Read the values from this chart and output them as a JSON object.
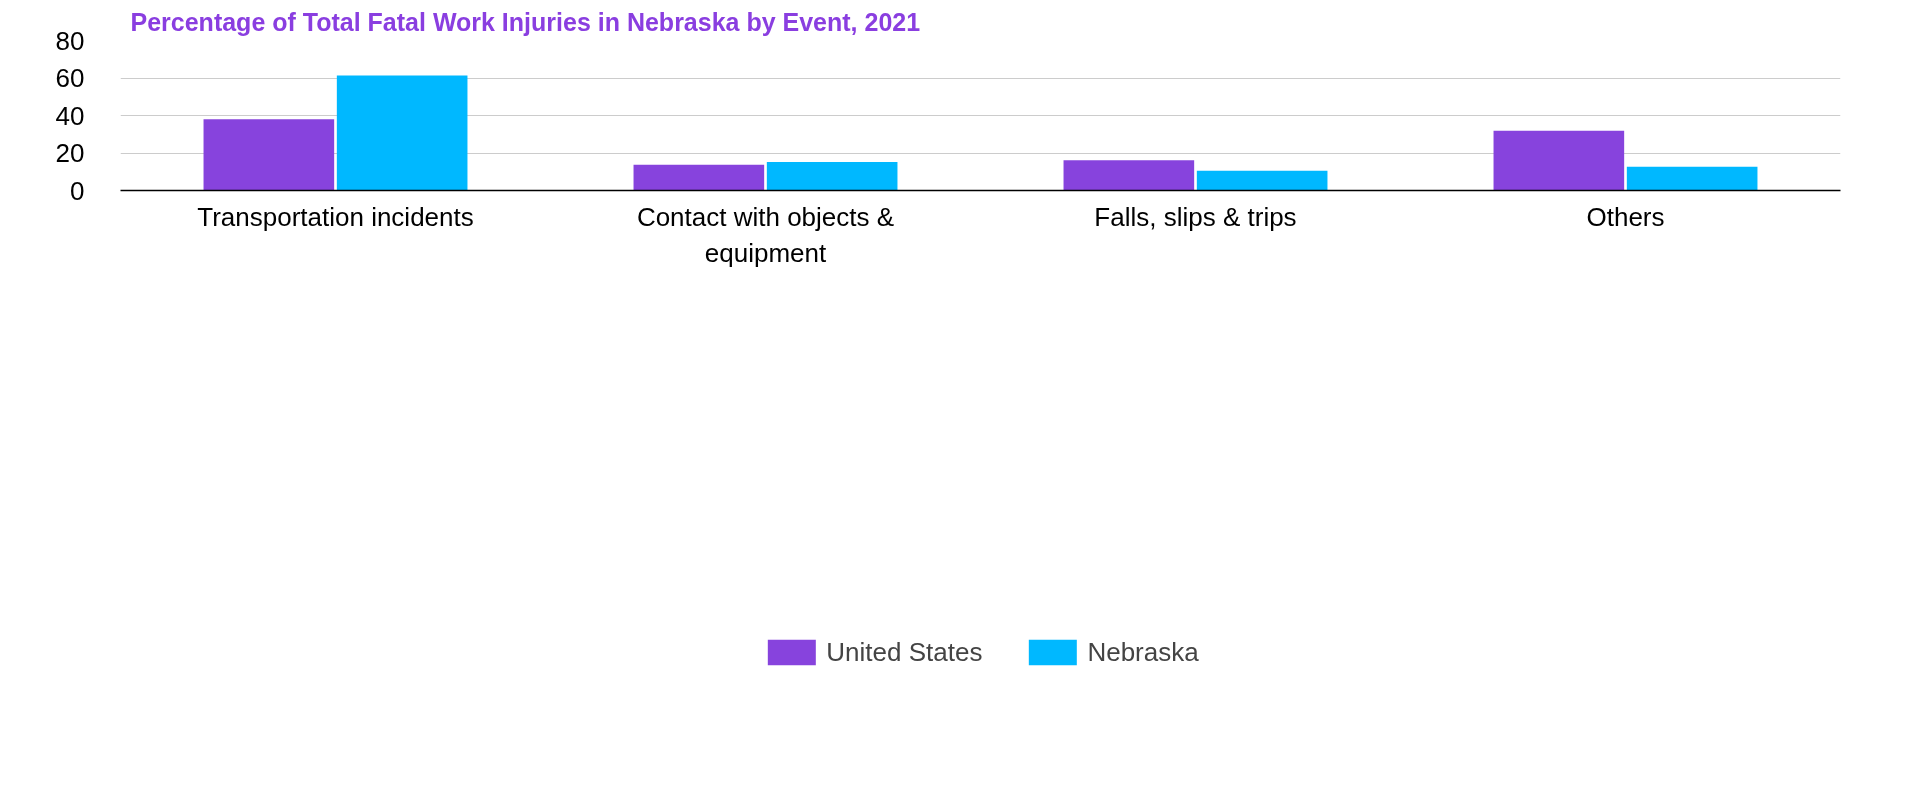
{
  "chart_data": {
    "type": "bar",
    "title": "Percentage of Total Fatal Work Injuries in Nebraska by Event, 2021",
    "categories": [
      "Transportation incidents",
      "Contact with objects & equipment",
      "Falls, slips & trips",
      "Others"
    ],
    "series": [
      {
        "name": "United States",
        "color": "#8743dd",
        "values": [
          38.0,
          13.7,
          16.2,
          31.9
        ]
      },
      {
        "name": "Nebraska",
        "color": "#00b8ff",
        "values": [
          61.4,
          15.2,
          10.5,
          12.7
        ]
      }
    ],
    "ylim": [
      0,
      80
    ],
    "yticks": [
      0,
      20,
      40,
      60,
      80
    ],
    "grid": "y",
    "legend": "bottom"
  }
}
